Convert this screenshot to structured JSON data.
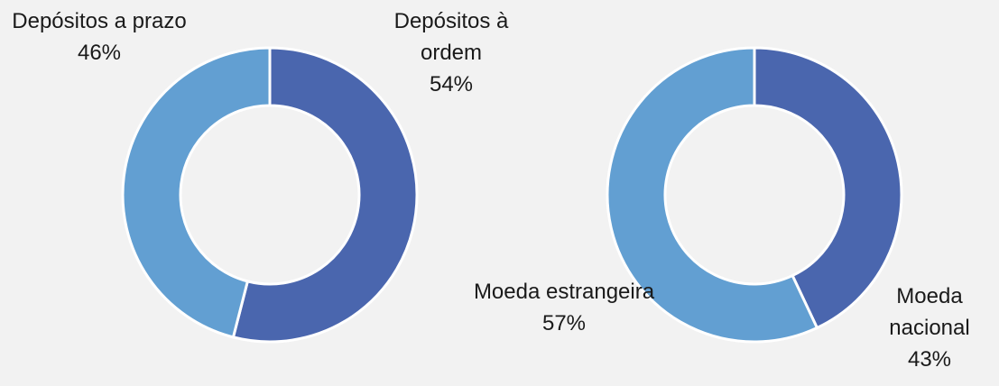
{
  "chart_data": [
    {
      "type": "donut",
      "categories": [
        "Depósitos à ordem",
        "Depósitos a prazo"
      ],
      "values": [
        54,
        46
      ],
      "value_labels": [
        "54%",
        "46%"
      ],
      "colors": [
        "#4a66ae",
        "#629fd2"
      ]
    },
    {
      "type": "donut",
      "categories": [
        "Moeda nacional",
        "Moeda estrangeira"
      ],
      "values": [
        43,
        57
      ],
      "value_labels": [
        "43%",
        "57%"
      ],
      "colors": [
        "#4a66ae",
        "#629fd2"
      ]
    }
  ]
}
